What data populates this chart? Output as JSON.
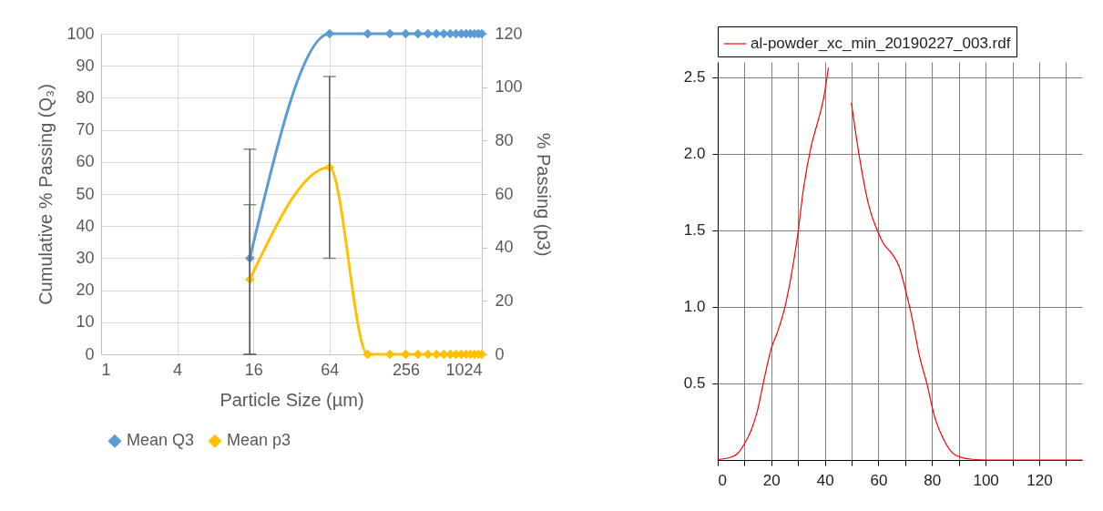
{
  "chart_data": [
    {
      "type": "line",
      "xlabel": "Particle Size (µm)",
      "ylabel": "Cumulative  % Passing (Q₃)",
      "y2label": "% Passing (p3)",
      "log": "x",
      "grid": true,
      "legend": "bottom",
      "marker": "diamond",
      "xlim": [
        1,
        1024
      ],
      "xticks": [
        1,
        4,
        16,
        64,
        256,
        1024
      ],
      "ylim": [
        0,
        100
      ],
      "yticks": [
        0,
        10,
        20,
        30,
        40,
        50,
        60,
        70,
        80,
        90,
        100
      ],
      "y2lim": [
        0,
        120
      ],
      "y2ticks": [
        0,
        20,
        40,
        60,
        80,
        100,
        120
      ],
      "series": [
        {
          "name": "Mean Q3",
          "color": "#5b9bd5",
          "x": [
            15,
            64,
            128,
            192,
            256,
            320,
            384,
            448,
            512,
            576,
            640,
            704,
            768,
            832,
            896,
            960,
            1024
          ],
          "values": [
            30,
            100,
            100,
            100,
            100,
            100,
            100,
            100,
            100,
            100,
            100,
            100,
            100,
            100,
            100,
            100,
            100
          ],
          "errors": [
            [
              0,
              64
            ],
            null,
            null,
            null,
            null,
            null,
            null,
            null,
            null,
            null,
            null,
            null,
            null,
            null,
            null,
            null,
            null
          ]
        },
        {
          "name": "Mean p3",
          "color": "#ffc000",
          "axis": "y2",
          "x": [
            15,
            64,
            128,
            192,
            256,
            320,
            384,
            448,
            512,
            576,
            640,
            704,
            768,
            832,
            896,
            960,
            1024
          ],
          "values": [
            28,
            70,
            0,
            0,
            0,
            0,
            0,
            0,
            0,
            0,
            0,
            0,
            0,
            0,
            0,
            0,
            0
          ],
          "errors": [
            [
              0,
              56
            ],
            [
              36,
              104
            ],
            null,
            null,
            null,
            null,
            null,
            null,
            null,
            null,
            null,
            null,
            null,
            null,
            null,
            null,
            null
          ]
        }
      ]
    },
    {
      "type": "line",
      "grid": true,
      "legend": "top left",
      "xlim": [
        0,
        136
      ],
      "ylim": [
        0,
        2.6
      ],
      "xticks": [
        0,
        {
          "value": 10,
          "label": null
        },
        20,
        {
          "value": 30,
          "label": null
        },
        40,
        {
          "value": 50,
          "label": null
        },
        60,
        {
          "value": 70,
          "label": null
        },
        80,
        {
          "value": 90,
          "label": null
        },
        100,
        {
          "value": 110,
          "label": null
        },
        120,
        {
          "value": 130,
          "label": null
        }
      ],
      "yticks": [
        {
          "value": 0.5,
          "label": "0.5"
        },
        {
          "value": 1,
          "label": "1.0"
        },
        {
          "value": 1.5,
          "label": "1.5"
        },
        {
          "value": 2,
          "label": "2.0"
        },
        {
          "value": 2.5,
          "label": "2.5"
        }
      ],
      "series": [
        {
          "name": "al-powder_xc_min_20190227_003.rdf",
          "color": "#ff0000",
          "x": [
            0,
            4.4,
            7.3,
            10.1,
            12.4,
            14.8,
            17.1,
            20,
            22.2,
            25.1,
            27.4,
            29.7,
            32,
            34.9,
            37.2,
            39.5,
            41.3,
            42.2,
            45,
            48.2,
            49.9,
            52.8,
            56.3,
            60.3,
            62,
            64.9,
            67.8,
            70.1,
            72.4,
            75.3,
            78.2,
            81,
            83.9,
            87.4,
            90.8,
            94.3,
            100.6,
            136
          ],
          "values": [
            0.004,
            0.015,
            0.04,
            0.11,
            0.19,
            0.32,
            0.51,
            0.73,
            0.83,
            1.0,
            1.2,
            1.45,
            1.77,
            2.05,
            2.2,
            2.36,
            2.56,
            null,
            null,
            null,
            2.33,
            1.99,
            1.67,
            1.47,
            1.41,
            1.35,
            1.26,
            1.11,
            0.94,
            0.68,
            0.49,
            0.28,
            0.15,
            0.05,
            0.017,
            0.006,
            0,
            0
          ]
        }
      ]
    }
  ]
}
